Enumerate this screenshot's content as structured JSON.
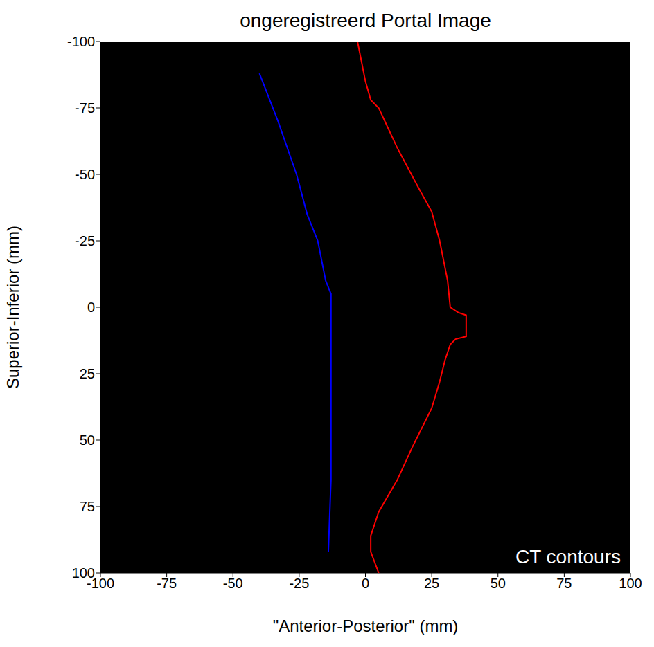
{
  "chart_data": {
    "type": "line",
    "title": "ongeregistreerd Portal Image",
    "x_label": "\"Anterior-Posterior\" (mm)",
    "y_label": "Superior-Inferior (mm)",
    "annotation": "CT contours",
    "xlim": [
      -100,
      100
    ],
    "xticks": [
      -100,
      -75,
      -50,
      -25,
      0,
      25,
      50,
      75,
      100
    ],
    "ylim": [
      -100,
      100
    ],
    "yticks": [
      -100,
      -75,
      -50,
      -25,
      0,
      25,
      50,
      75,
      100
    ],
    "grid": false,
    "series": [
      {
        "color": "#0000ff",
        "x": [
          -40,
          -33,
          -26,
          -22,
          -18,
          -15,
          -13,
          -13,
          -13,
          -13,
          -14
        ],
        "y": [
          -88,
          -70,
          -50,
          -35,
          -25,
          -10,
          -5,
          20,
          50,
          65,
          92
        ]
      },
      {
        "color": "#ff0000",
        "x": [
          -3,
          0,
          2,
          5,
          12,
          20,
          25,
          28,
          31,
          32,
          35,
          38,
          38,
          34,
          32,
          30,
          28,
          25,
          18,
          12,
          5,
          2,
          2,
          5
        ],
        "y": [
          -100,
          -85,
          -78,
          -75,
          -60,
          -45,
          -36,
          -25,
          -10,
          0,
          2,
          3,
          11,
          12,
          14,
          20,
          28,
          38,
          52,
          65,
          77,
          86,
          92,
          100
        ]
      }
    ]
  }
}
